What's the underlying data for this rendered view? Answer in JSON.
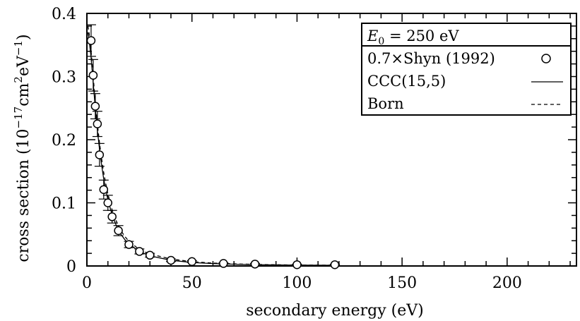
{
  "chart_data": {
    "type": "scatter",
    "xlabel": "secondary energy (eV)",
    "ylabel": "cross section (10",
    "ylabel_exp1": "−17",
    "ylabel_mid": "cm",
    "ylabel_exp2": "2",
    "ylabel_mid2": "eV",
    "ylabel_exp3": "−1",
    "ylabel_end": ")",
    "xlim": [
      0,
      233
    ],
    "ylim": [
      0,
      0.4
    ],
    "x_ticks": [
      0,
      50,
      100,
      150,
      200
    ],
    "x_tick_labels": [
      "0",
      "50",
      "100",
      "150",
      "200"
    ],
    "y_ticks": [
      0,
      0.1,
      0.2,
      0.3,
      0.4
    ],
    "y_tick_labels": [
      "0",
      "0.1",
      "0.2",
      "0.3",
      "0.4"
    ],
    "legend": {
      "placement": "top-right",
      "header_italic": "E",
      "header_sub": "0",
      "header_rest": " = 250 eV"
    },
    "series": [
      {
        "name": "0.7×Shyn (1992)",
        "style": "markers",
        "points": [
          {
            "x": 2,
            "y": 0.357,
            "err": 0.025
          },
          {
            "x": 3,
            "y": 0.302,
            "err": 0.025
          },
          {
            "x": 4,
            "y": 0.253,
            "err": 0.02
          },
          {
            "x": 5,
            "y": 0.225,
            "err": 0.02
          },
          {
            "x": 6,
            "y": 0.176,
            "err": 0.018
          },
          {
            "x": 8,
            "y": 0.121,
            "err": 0.015
          },
          {
            "x": 10,
            "y": 0.1,
            "err": 0.012
          },
          {
            "x": 12,
            "y": 0.078,
            "err": 0.01
          },
          {
            "x": 15,
            "y": 0.056,
            "err": 0.008
          },
          {
            "x": 20,
            "y": 0.034,
            "err": 0.005
          },
          {
            "x": 25,
            "y": 0.023,
            "err": 0.004
          },
          {
            "x": 30,
            "y": 0.017,
            "err": 0.003
          },
          {
            "x": 40,
            "y": 0.009,
            "err": 0.002
          },
          {
            "x": 50,
            "y": 0.007,
            "err": 0.0015
          },
          {
            "x": 65,
            "y": 0.004,
            "err": 0.001
          },
          {
            "x": 80,
            "y": 0.003,
            "err": 0.001
          },
          {
            "x": 100,
            "y": 0.002,
            "err": 0.0008
          },
          {
            "x": 118,
            "y": 0.002,
            "err": 0.0008
          }
        ]
      },
      {
        "name": "CCC(15,5)",
        "style": "solid",
        "x": [
          0.5,
          1,
          1.5,
          2,
          3,
          4,
          5,
          6,
          7,
          8,
          9,
          10,
          12,
          14,
          16,
          18,
          20,
          25,
          30,
          40,
          50,
          60,
          70,
          80,
          90,
          100,
          110,
          118
        ],
        "y": [
          0.37,
          0.36,
          0.345,
          0.33,
          0.29,
          0.25,
          0.215,
          0.185,
          0.16,
          0.138,
          0.12,
          0.105,
          0.081,
          0.064,
          0.051,
          0.042,
          0.035,
          0.023,
          0.016,
          0.009,
          0.0055,
          0.0038,
          0.0028,
          0.0021,
          0.0017,
          0.0014,
          0.0012,
          0.0011
        ]
      },
      {
        "name": "Born",
        "style": "dashed",
        "x": [
          0.5,
          1,
          1.5,
          2,
          3,
          4,
          5,
          6,
          7,
          8,
          9,
          10,
          12,
          14,
          16,
          18,
          20,
          25,
          30,
          40,
          50,
          60,
          70,
          80,
          90,
          100,
          110,
          118
        ],
        "y": [
          0.38,
          0.37,
          0.355,
          0.34,
          0.3,
          0.26,
          0.225,
          0.195,
          0.17,
          0.148,
          0.13,
          0.114,
          0.089,
          0.071,
          0.057,
          0.047,
          0.039,
          0.026,
          0.019,
          0.011,
          0.0068,
          0.0046,
          0.0033,
          0.0025,
          0.0019,
          0.0015,
          0.0013,
          0.0012
        ]
      }
    ]
  }
}
